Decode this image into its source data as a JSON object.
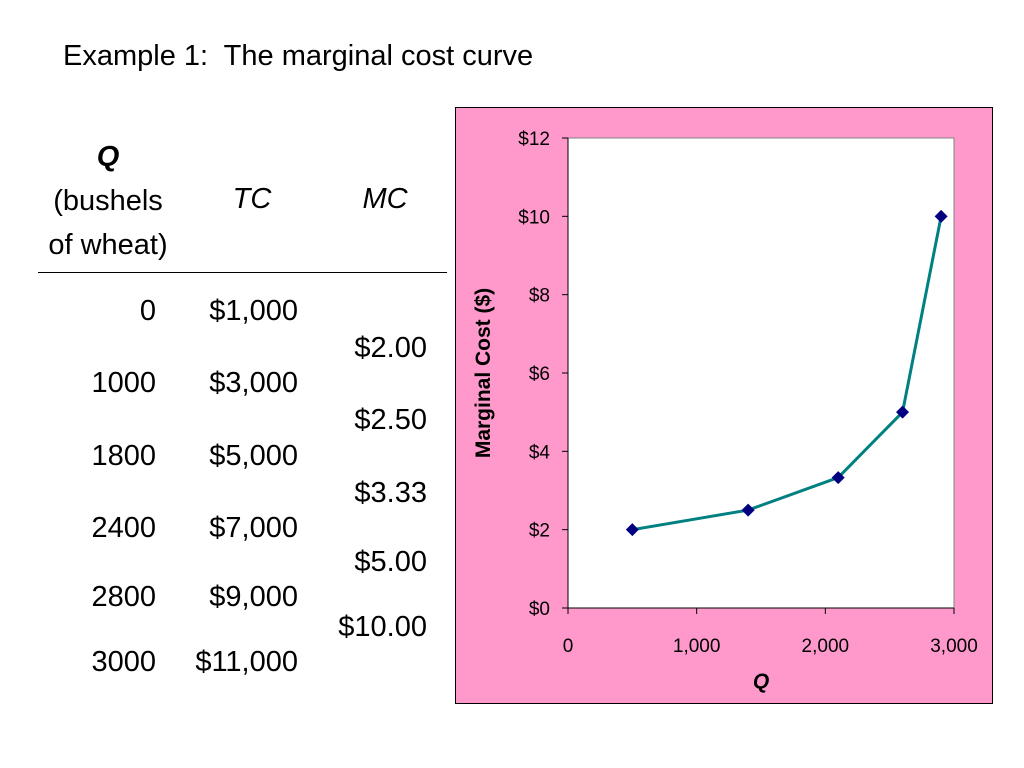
{
  "title": "Example 1:  The marginal cost curve",
  "table": {
    "headers": {
      "q_symbol": "Q",
      "q_line2": "(bushels",
      "q_line3": "of wheat)",
      "tc": "TC",
      "mc": "MC"
    },
    "q": [
      "0",
      "1000",
      "1800",
      "2400",
      "2800",
      "3000"
    ],
    "tc": [
      "$1,000",
      "$3,000",
      "$5,000",
      "$7,000",
      "$9,000",
      "$11,000"
    ],
    "mc": [
      "$2.00",
      "$2.50",
      "$3.33",
      "$5.00",
      "$10.00"
    ]
  },
  "colors": {
    "chart_background": "#ff99cc",
    "plot_background": "#ffffff",
    "line": "#008080",
    "marker": "#000080"
  },
  "chart_data": {
    "type": "line",
    "xlabel": "Q",
    "ylabel": "Marginal Cost ($)",
    "xlim": [
      0,
      3000
    ],
    "ylim": [
      0,
      12
    ],
    "x_ticks": [
      0,
      1000,
      2000,
      3000
    ],
    "x_tick_labels": [
      "0",
      "1,000",
      "2,000",
      "3,000"
    ],
    "y_ticks": [
      0,
      2,
      4,
      6,
      8,
      10,
      12
    ],
    "y_tick_labels": [
      "$0",
      "$2",
      "$4",
      "$6",
      "$8",
      "$10",
      "$12"
    ],
    "grid": false,
    "legend": "none",
    "marker": "diamond",
    "series": [
      {
        "x": [
          500,
          1400,
          2100,
          2600,
          2900
        ],
        "y": [
          2.0,
          2.5,
          3.33,
          5.0,
          10.0
        ]
      }
    ]
  }
}
